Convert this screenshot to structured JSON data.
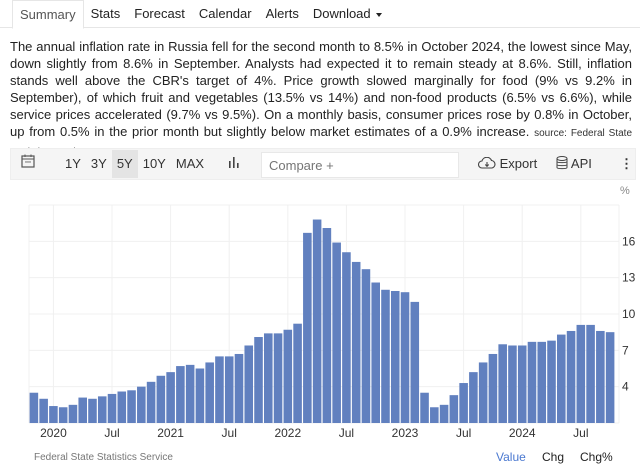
{
  "tabs": [
    {
      "label": "Summary",
      "active": true
    },
    {
      "label": "Stats"
    },
    {
      "label": "Forecast"
    },
    {
      "label": "Calendar"
    },
    {
      "label": "Alerts"
    },
    {
      "label": "Download"
    }
  ],
  "description": "The annual inflation rate in Russia fell for the second month to 8.5% in October 2024, the lowest since May, down slightly from 8.6% in September. Analysts had expected it to remain steady at 8.6%. Still, inflation stands well above the CBR's target of 4%. Price growth slowed marginally for food (9% vs 9.2% in September), of which fruit and vegetables (13.5% vs 14%) and non-food products (6.5% vs 6.6%), while service prices accelerated (9.7% vs 9.5%). On a monthly basis, consumer prices rose by 0.8% in October, up from 0.5% in the prior month but slightly below market estimates of a 0.9% increase.",
  "source": "source: Federal State Statistics Service",
  "toolbar": {
    "ranges": [
      "1Y",
      "3Y",
      "5Y",
      "10Y",
      "MAX"
    ],
    "selected_range": "5Y",
    "compare_placeholder": "Compare +",
    "export": "Export",
    "api": "API"
  },
  "footer": {
    "source": "Federal State Statistics Service",
    "views": [
      "Value",
      "Chg",
      "Chg%"
    ],
    "active_view": "Value"
  },
  "colors": {
    "bar": "#6180bf",
    "active_link": "#4a78d0"
  },
  "chart_data": {
    "type": "bar",
    "unit": "%",
    "ylim": [
      1,
      19
    ],
    "yticks": [
      4,
      7,
      10,
      13,
      16
    ],
    "grid": true,
    "x_tick_labels": [
      {
        "label": "2020",
        "month": "2020-01"
      },
      {
        "label": "Jul",
        "month": "2020-07"
      },
      {
        "label": "2021",
        "month": "2021-01"
      },
      {
        "label": "Jul",
        "month": "2021-07"
      },
      {
        "label": "2022",
        "month": "2022-01"
      },
      {
        "label": "Jul",
        "month": "2022-07"
      },
      {
        "label": "2023",
        "month": "2023-01"
      },
      {
        "label": "Jul",
        "month": "2023-07"
      },
      {
        "label": "2024",
        "month": "2024-01"
      },
      {
        "label": "Jul",
        "month": "2024-07"
      }
    ],
    "start_month": "2019-11",
    "values": [
      3.5,
      3.0,
      2.4,
      2.3,
      2.5,
      3.1,
      3.0,
      3.2,
      3.4,
      3.6,
      3.7,
      4.0,
      4.4,
      4.9,
      5.2,
      5.7,
      5.8,
      5.5,
      6.0,
      6.5,
      6.5,
      6.7,
      7.4,
      8.1,
      8.4,
      8.4,
      8.7,
      9.2,
      16.7,
      17.8,
      17.1,
      15.9,
      15.1,
      14.3,
      13.7,
      12.6,
      12.0,
      11.9,
      11.8,
      11.0,
      3.5,
      2.3,
      2.5,
      3.3,
      4.3,
      5.2,
      6.0,
      6.7,
      7.5,
      7.4,
      7.4,
      7.7,
      7.7,
      7.8,
      8.3,
      8.6,
      9.1,
      9.1,
      8.6,
      8.5
    ]
  }
}
